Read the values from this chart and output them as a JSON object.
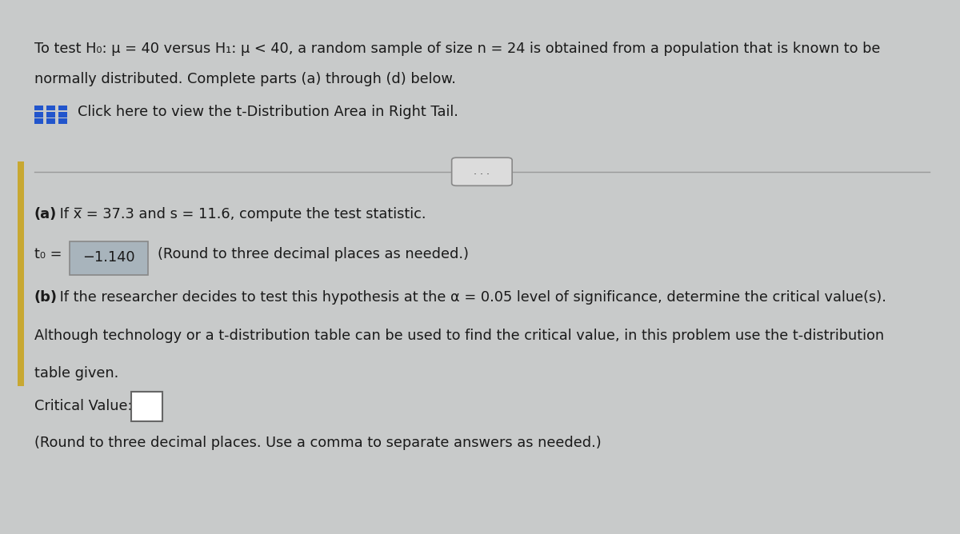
{
  "bg_top_color": "#1a5f7a",
  "bg_main_color": "#c8caca",
  "panel_color": "#dcdcdc",
  "panel_border_color": "#aaaaaa",
  "left_accent_color": "#c8a832",
  "text_color": "#1a1a1a",
  "bold_text_color": "#111111",
  "icon_color": "#2255cc",
  "divider_color": "#999999",
  "t0_box_color": "#a8b4bc",
  "cv_box_color": "#ffffff",
  "dots_box_color": "#e0e0e0",
  "title_line1": "To test H₀: μ = 40 versus H₁: μ < 40, a random sample of size n = 24 is obtained from a population that is known to be",
  "title_line2": "normally distributed. Complete parts (a) through (d) below.",
  "click_text": "Click here to view the t-Distribution Area in Right Tail.",
  "part_a_bold": "(a)",
  "part_a_rest": " If x̅ = 37.3 and s = 11.6, compute the test statistic.",
  "t0_prefix": "t₀ =",
  "t0_value": "−1.140",
  "t0_suffix": "(Round to three decimal places as needed.)",
  "part_b_bold": "(b)",
  "part_b_line1": " If the researcher decides to test this hypothesis at the α = 0.05 level of significance, determine the critical value(s).",
  "part_b_line2": "Although technology or a t-distribution table can be used to find the critical value, in this problem use the t-distribution",
  "part_b_line3": "table given.",
  "cv_label": "Critical Value:",
  "cv_suffix": "(Round to three decimal places. Use a comma to separate answers as needed.)"
}
